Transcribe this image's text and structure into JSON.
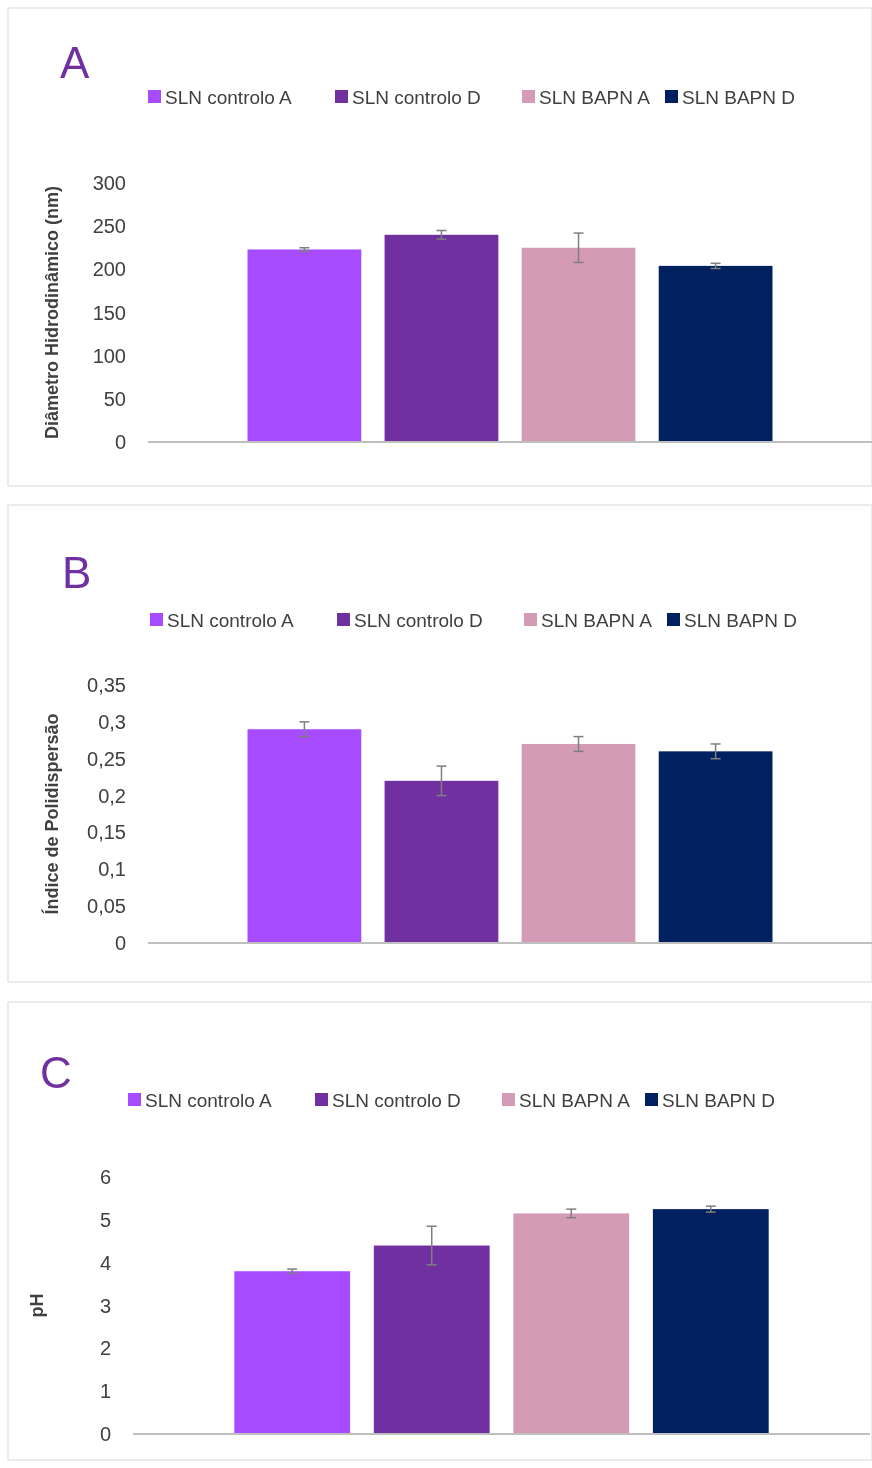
{
  "chart_data": [
    {
      "type": "bar",
      "title": "A",
      "ylabel": "Diâmetro Hidrodinâmico (nm)",
      "categories": [
        null
      ],
      "ylim": [
        0,
        300
      ],
      "yticks": [
        0,
        50,
        100,
        150,
        200,
        250,
        300
      ],
      "legend": "top",
      "grid": false,
      "series": [
        {
          "name": "SLN controlo A",
          "color": "#a64bff",
          "values": [
            223
          ],
          "errors": [
            2
          ]
        },
        {
          "name": "SLN controlo D",
          "color": "#7030a0",
          "values": [
            240
          ],
          "errors": [
            5
          ]
        },
        {
          "name": "SLN BAPN A",
          "color": "#d49bb7",
          "values": [
            225
          ],
          "errors": [
            17
          ]
        },
        {
          "name": "SLN BAPN D",
          "color": "#002060",
          "values": [
            204
          ],
          "errors": [
            3
          ]
        }
      ]
    },
    {
      "type": "bar",
      "title": "B",
      "ylabel": "Índice de Polidispersão",
      "categories": [
        null
      ],
      "ylim": [
        0,
        0.35
      ],
      "yticks": [
        0,
        {
          "value": 0.05,
          "label": "0,05"
        },
        {
          "value": 0.1,
          "label": "0,1"
        },
        {
          "value": 0.15,
          "label": "0,15"
        },
        {
          "value": 0.2,
          "label": "0,2"
        },
        {
          "value": 0.25,
          "label": "0,25"
        },
        {
          "value": 0.3,
          "label": "0,3"
        },
        {
          "value": 0.35,
          "label": "0,35"
        }
      ],
      "legend": "top",
      "grid": false,
      "series": [
        {
          "name": "SLN controlo A",
          "color": "#a64bff",
          "values": [
            0.29
          ],
          "errors": [
            0.01
          ]
        },
        {
          "name": "SLN controlo D",
          "color": "#7030a0",
          "values": [
            0.22
          ],
          "errors": [
            0.02
          ]
        },
        {
          "name": "SLN BAPN A",
          "color": "#d49bb7",
          "values": [
            0.27
          ],
          "errors": [
            0.01
          ]
        },
        {
          "name": "SLN BAPN D",
          "color": "#002060",
          "values": [
            0.26
          ],
          "errors": [
            0.01
          ]
        }
      ]
    },
    {
      "type": "bar",
      "title": "C",
      "ylabel": "pH",
      "categories": [
        null
      ],
      "ylim": [
        0,
        6
      ],
      "yticks": [
        0,
        1,
        2,
        3,
        4,
        5,
        6
      ],
      "legend": "top",
      "grid": false,
      "series": [
        {
          "name": "SLN controlo A",
          "color": "#a64bff",
          "values": [
            3.8
          ],
          "errors": [
            0.05
          ]
        },
        {
          "name": "SLN controlo D",
          "color": "#7030a0",
          "values": [
            4.4
          ],
          "errors": [
            0.45
          ]
        },
        {
          "name": "SLN BAPN A",
          "color": "#d49bb7",
          "values": [
            5.15
          ],
          "errors": [
            0.1
          ]
        },
        {
          "name": "SLN BAPN D",
          "color": "#002060",
          "values": [
            5.25
          ],
          "errors": [
            0.07
          ]
        }
      ]
    }
  ]
}
